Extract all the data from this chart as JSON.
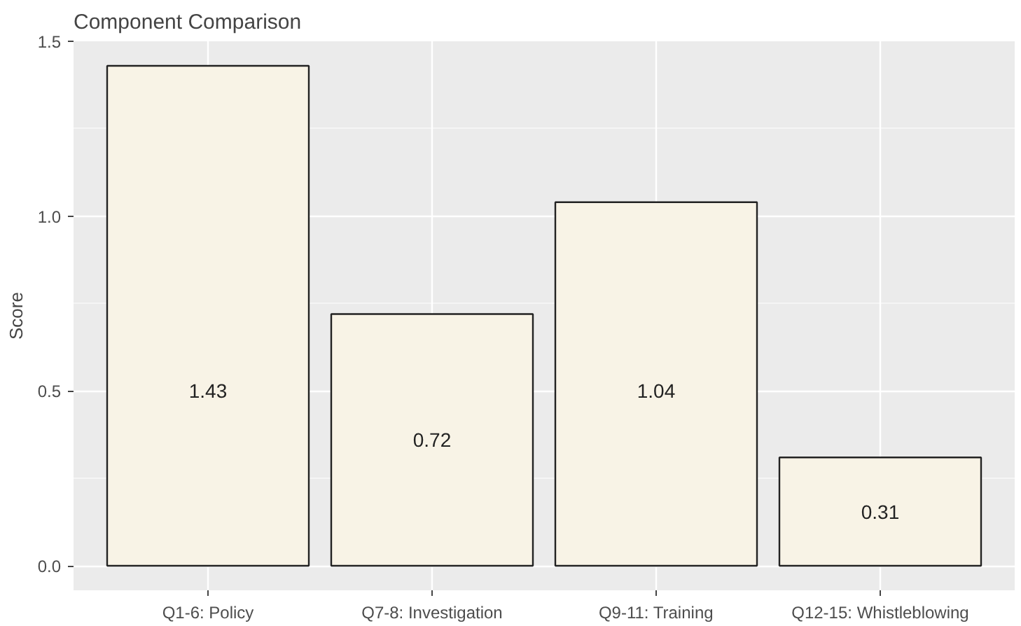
{
  "chart_data": {
    "type": "bar",
    "title": "Component Comparison",
    "ylabel": "Score",
    "categories": [
      "Q1-6: Policy",
      "Q7-8: Investigation",
      "Q9-11: Training",
      "Q12-15: Whistleblowing"
    ],
    "values": [
      1.43,
      0.72,
      1.04,
      0.31
    ],
    "color": "#f8f3e6",
    "ylim": [
      -0.07,
      1.5
    ],
    "yticks": [
      {
        "value": 0,
        "label": "0.0"
      },
      0.5,
      {
        "value": 1,
        "label": "1.0"
      },
      1.5
    ],
    "grid": true,
    "data_labels": true
  }
}
